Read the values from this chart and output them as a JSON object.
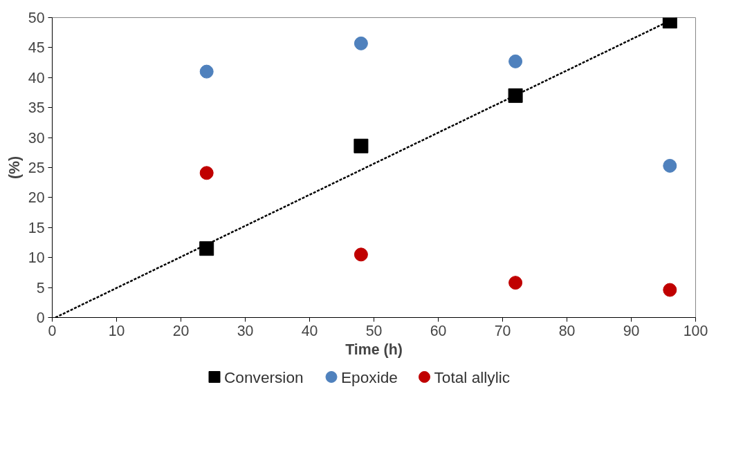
{
  "chart_data": {
    "type": "scatter",
    "xlabel": "Time (h)",
    "ylabel": "(%)",
    "x": [
      24,
      48,
      72,
      96
    ],
    "xlim": [
      0,
      100
    ],
    "xticks": [
      0,
      10,
      20,
      30,
      40,
      50,
      60,
      70,
      80,
      90,
      100
    ],
    "ylim": [
      0,
      50
    ],
    "yticks": [
      0,
      5,
      10,
      15,
      20,
      25,
      30,
      35,
      40,
      45,
      50
    ],
    "grid": false,
    "legend": "bottom",
    "series": [
      {
        "name": "Conversion",
        "color": "#000000",
        "marker": "square",
        "values": [
          11.5,
          28.6,
          37.0,
          49.4
        ]
      },
      {
        "name": "Epoxide",
        "color": "#4f81bd",
        "marker": "circle",
        "values": [
          41.0,
          45.7,
          42.7,
          25.3
        ]
      },
      {
        "name": "Total allylic",
        "color": "#c00000",
        "marker": "circle",
        "values": [
          24.1,
          10.5,
          5.8,
          4.6
        ]
      },
      {
        "type": "line",
        "color": "#000000",
        "line_style": "dashed",
        "marker": "none",
        "x": [
          0.5,
          97
        ],
        "values": [
          0,
          50
        ]
      }
    ]
  }
}
